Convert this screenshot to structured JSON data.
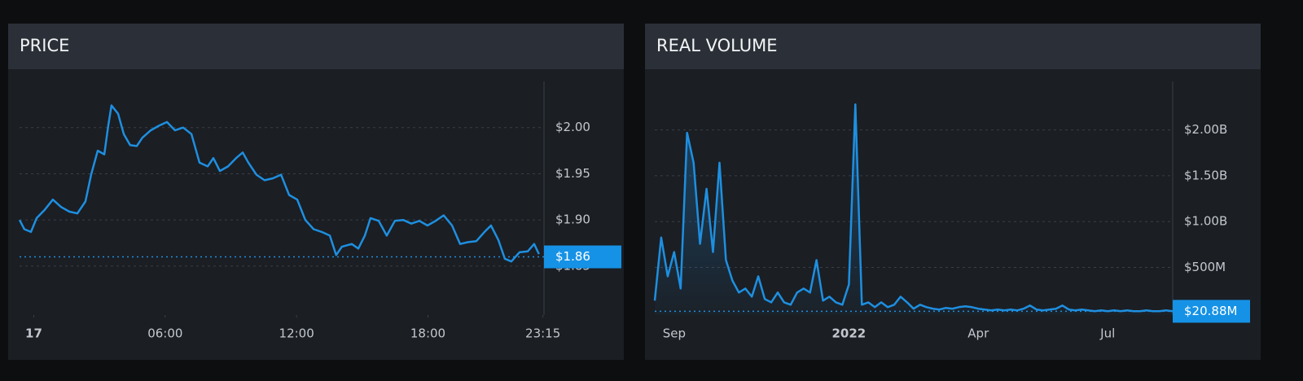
{
  "chart_data": [
    {
      "type": "line",
      "title": "PRICE",
      "color": "#1e8fe0",
      "grid": true,
      "x": [
        -0.65,
        -0.43,
        -0.13,
        0.13,
        0.5,
        0.87,
        1.25,
        1.62,
        1.99,
        2.36,
        2.62,
        2.92,
        3.22,
        3.4,
        3.55,
        3.85,
        4.11,
        4.4,
        4.7,
        4.96,
        5.34,
        5.71,
        6.08,
        6.45,
        6.82,
        7.2,
        7.57,
        7.94,
        8.2,
        8.5,
        8.87,
        9.24,
        9.54,
        9.8,
        10.17,
        10.54,
        10.91,
        11.29,
        11.66,
        12.03,
        12.4,
        12.78,
        13.15,
        13.52,
        13.81,
        14.07,
        14.52,
        14.82,
        15.12,
        15.38,
        15.75,
        16.12,
        16.49,
        16.87,
        17.24,
        17.61,
        17.98,
        18.35,
        18.72,
        19.1,
        19.47,
        19.84,
        20.21,
        20.58,
        20.88,
        21.22,
        21.51,
        21.81,
        22.18,
        22.56,
        22.85,
        23.07
      ],
      "values": [
        1.9,
        1.89,
        1.887,
        1.902,
        1.911,
        1.922,
        1.914,
        1.909,
        1.907,
        1.92,
        1.949,
        1.975,
        1.971,
        2.002,
        2.024,
        2.015,
        1.993,
        1.981,
        1.98,
        1.989,
        1.997,
        2.002,
        2.006,
        1.997,
        2.0,
        1.993,
        1.962,
        1.958,
        1.967,
        1.953,
        1.958,
        1.967,
        1.973,
        1.962,
        1.949,
        1.943,
        1.945,
        1.949,
        1.927,
        1.922,
        1.9,
        1.89,
        1.887,
        1.883,
        1.862,
        1.871,
        1.874,
        1.869,
        1.883,
        1.902,
        1.899,
        1.883,
        1.899,
        1.9,
        1.896,
        1.899,
        1.894,
        1.899,
        1.905,
        1.894,
        1.874,
        1.876,
        1.877,
        1.887,
        1.894,
        1.878,
        1.858,
        1.855,
        1.865,
        1.866,
        1.874,
        1.863
      ],
      "xlim": [
        -0.65,
        23.3
      ],
      "xticks": [
        {
          "value": 0,
          "label": "17"
        },
        {
          "value": 6,
          "label": "06:00"
        },
        {
          "value": 12,
          "label": "12:00"
        },
        {
          "value": 18,
          "label": "18:00"
        },
        {
          "value": 23.25,
          "label": "23:15"
        }
      ],
      "ylim": [
        1.797,
        2.05
      ],
      "yticks": [
        {
          "value": 1.85,
          "label": "$1.85"
        },
        {
          "value": 1.9,
          "label": "$1.90"
        },
        {
          "value": 1.95,
          "label": "$1.95"
        },
        {
          "value": 2.0,
          "label": "$2.00"
        }
      ],
      "current_value": {
        "value": 1.86,
        "label": "$1.86"
      }
    },
    {
      "type": "area",
      "title": "REAL VOLUME",
      "color": "#1e8fe0",
      "grid": true,
      "categories": [
        null,
        null,
        null,
        "Sep",
        null,
        null,
        null,
        null,
        null,
        null,
        null,
        null,
        null,
        null,
        null,
        null,
        null,
        null,
        null,
        null,
        null,
        null,
        null,
        null,
        null,
        null,
        null,
        null,
        null,
        null,
        "2022",
        null,
        null,
        null,
        null,
        null,
        null,
        null,
        null,
        null,
        null,
        null,
        null,
        null,
        null,
        null,
        null,
        null,
        null,
        null,
        "Apr",
        null,
        null,
        null,
        null,
        null,
        null,
        null,
        null,
        null,
        null,
        null,
        null,
        null,
        null,
        null,
        null,
        null,
        null,
        null,
        "Jul",
        null,
        null,
        null,
        null,
        null,
        null,
        null,
        null,
        null,
        null,
        null,
        null,
        null,
        null,
        null,
        null,
        null,
        null,
        null,
        null,
        null,
        null
      ],
      "values": [
        137000000,
        827000000,
        403000000,
        668000000,
        270000000,
        1969000000,
        1642000000,
        757000000,
        1358000000,
        668000000,
        1642000000,
        580000000,
        358000000,
        226000000,
        270000000,
        181000000,
        403000000,
        155000000,
        119000000,
        226000000,
        119000000,
        93000000,
        226000000,
        270000000,
        226000000,
        580000000,
        137000000,
        181000000,
        119000000,
        93000000,
        314000000,
        2279000000,
        93000000,
        119000000,
        66000000,
        119000000,
        66000000,
        93000000,
        181000000,
        119000000,
        49000000,
        93000000,
        66000000,
        49000000,
        40000000,
        58000000,
        49000000,
        66000000,
        75000000,
        66000000,
        49000000,
        40000000,
        31000000,
        40000000,
        31000000,
        40000000,
        31000000,
        49000000,
        84000000,
        40000000,
        31000000,
        40000000,
        49000000,
        84000000,
        40000000,
        31000000,
        40000000,
        31000000,
        22000000,
        31000000,
        22000000,
        31000000,
        22000000,
        31000000,
        22000000,
        22000000,
        31000000,
        22000000,
        22000000,
        31000000,
        22000000,
        22000000,
        31000000,
        22000000,
        31000000,
        22000000,
        22000000,
        31000000,
        22000000,
        22000000,
        31000000,
        22000000,
        20880000
      ],
      "ylim": [
        -20000000,
        2530000000
      ],
      "yticks": [
        {
          "value": 500000000,
          "label": "$500M"
        },
        {
          "value": 1000000000,
          "label": "$1.00B"
        },
        {
          "value": 1500000000,
          "label": "$1.50B"
        },
        {
          "value": 2000000000,
          "label": "$2.00B"
        }
      ],
      "current_value": {
        "value": 20880000,
        "label": "$20.88M"
      }
    }
  ]
}
